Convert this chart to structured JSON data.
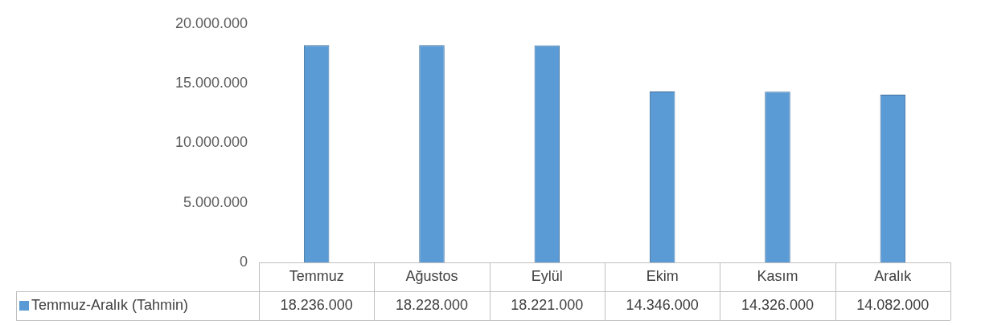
{
  "chart_data": {
    "type": "bar",
    "categories": [
      "Temmuz",
      "Ağustos",
      "Eylül",
      "Ekim",
      "Kasım",
      "Aralık"
    ],
    "series": [
      {
        "name": "Temmuz-Aralık (Tahmin)",
        "color": "#5b9bd5",
        "values": [
          18236000,
          18228000,
          18221000,
          14346000,
          14326000,
          14082000
        ],
        "value_labels": [
          "18.236.000",
          "18.228.000",
          "18.221.000",
          "14.346.000",
          "14.326.000",
          "14.082.000"
        ]
      }
    ],
    "ylim": [
      0,
      20000000
    ],
    "yticks": [
      {
        "value": 0,
        "label": "0"
      },
      {
        "value": 5000000,
        "label": "5.000.000"
      },
      {
        "value": 10000000,
        "label": "10.000.000"
      },
      {
        "value": 15000000,
        "label": "15.000.000"
      },
      {
        "value": 20000000,
        "label": "20.000.000"
      }
    ],
    "grid": false,
    "legend": "bottom left"
  }
}
